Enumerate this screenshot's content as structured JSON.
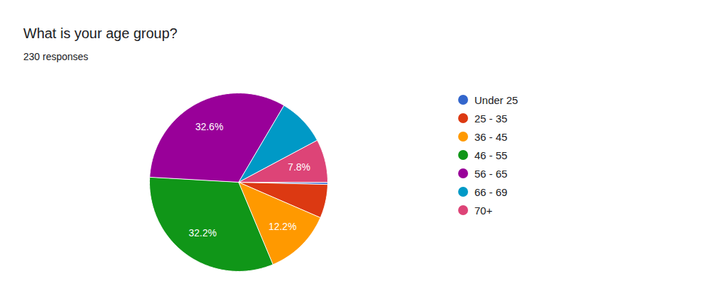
{
  "chart_data": {
    "type": "pie",
    "title": "What is your age group?",
    "subtitle": "230 responses",
    "categories": [
      "Under 25",
      "25 - 35",
      "36 - 45",
      "46 - 55",
      "56 - 65",
      "66 - 69",
      "70+"
    ],
    "values": [
      0.4,
      6.1,
      12.2,
      32.2,
      32.6,
      8.7,
      7.8
    ],
    "value_labels": [
      null,
      null,
      "12.2%",
      "32.2%",
      "32.6%",
      null,
      "7.8%"
    ],
    "colors": [
      "#3366cc",
      "#dc3912",
      "#ff9900",
      "#109618",
      "#990099",
      "#0099c6",
      "#dd4477"
    ],
    "data_labels": true,
    "legend": "right"
  }
}
